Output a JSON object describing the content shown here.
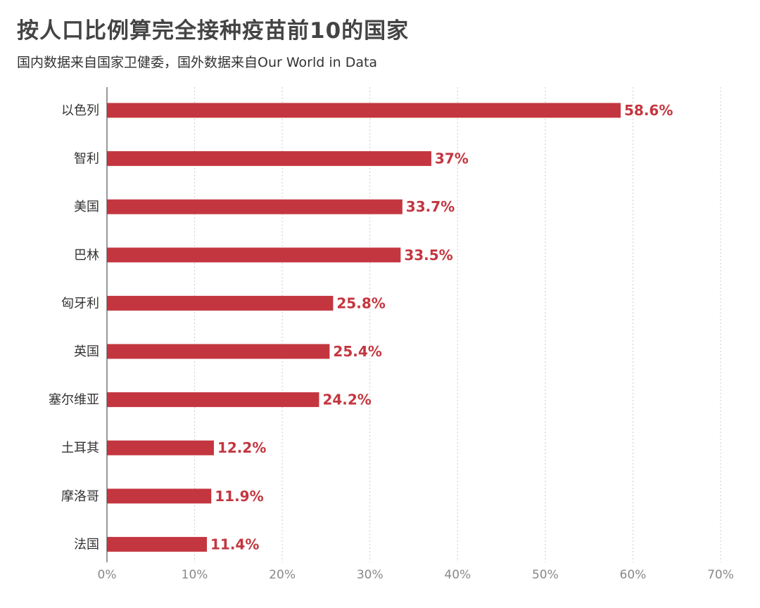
{
  "header": {
    "title": "按人口比例算完全接种疫苗前10的国家",
    "subtitle": "国内数据来自国家卫健委，国外数据来自Our World in Data"
  },
  "chart_data": {
    "type": "bar",
    "orientation": "horizontal",
    "title": "按人口比例算完全接种疫苗前10的国家",
    "subtitle": "国内数据来自国家卫健委，国外数据来自Our World in Data",
    "categories": [
      "以色列",
      "智利",
      "美国",
      "巴林",
      "匈牙利",
      "英国",
      "塞尔维亚",
      "土耳其",
      "摩洛哥",
      "法国"
    ],
    "values": [
      58.6,
      37,
      33.7,
      33.5,
      25.8,
      25.4,
      24.2,
      12.2,
      11.9,
      11.4
    ],
    "data_labels": [
      "58.6%",
      "37%",
      "33.7%",
      "33.5%",
      "25.8%",
      "25.4%",
      "24.2%",
      "12.2%",
      "11.9%",
      "11.4%"
    ],
    "xlim": [
      0,
      70
    ],
    "x_ticks": [
      0,
      10,
      20,
      30,
      40,
      50,
      60,
      70
    ],
    "x_tick_labels": [
      "0%",
      "10%",
      "20%",
      "30%",
      "40%",
      "50%",
      "60%",
      "70%"
    ],
    "xlabel": "",
    "ylabel": "",
    "grid": true,
    "bar_color": "#c4363f",
    "label_color": "#c4363f"
  }
}
